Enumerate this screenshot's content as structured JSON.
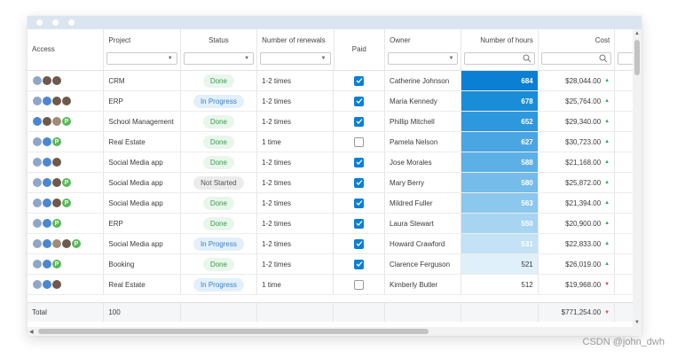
{
  "columns": {
    "access": "Access",
    "project": "Project",
    "status": "Status",
    "renewals": "Number of renewals",
    "paid": "Paid",
    "owner": "Owner",
    "hours": "Number of hours",
    "cost": "Cost"
  },
  "rows": [
    {
      "project": "CRM",
      "status": "Done",
      "status_type": "done",
      "renewals": "1-2 times",
      "paid": true,
      "owner": "Catherine Johnson",
      "hours": "684",
      "cost": "$28,044.00",
      "trend": "up",
      "avatars": [
        "g1",
        "g3",
        "g3"
      ]
    },
    {
      "project": "ERP",
      "status": "In Progress",
      "status_type": "prog",
      "renewals": "1-2 times",
      "paid": true,
      "owner": "Maria Kennedy",
      "hours": "678",
      "cost": "$25,764.00",
      "trend": "up",
      "avatars": [
        "g1",
        "g2",
        "g3",
        "g3"
      ]
    },
    {
      "project": "School Management",
      "status": "Done",
      "status_type": "done",
      "renewals": "1-2 times",
      "paid": true,
      "owner": "Phillip Mitchell",
      "hours": "652",
      "cost": "$29,340.00",
      "trend": "up",
      "avatars": [
        "g2",
        "g3",
        "g4",
        "P"
      ]
    },
    {
      "project": "Real Estate",
      "status": "Done",
      "status_type": "done",
      "renewals": "1 time",
      "paid": false,
      "owner": "Pamela Nelson",
      "hours": "627",
      "cost": "$30,723.00",
      "trend": "up",
      "avatars": [
        "g1",
        "g2",
        "P"
      ]
    },
    {
      "project": "Social Media app",
      "status": "Done",
      "status_type": "done",
      "renewals": "1-2 times",
      "paid": true,
      "owner": "Jose Morales",
      "hours": "588",
      "cost": "$21,168.00",
      "trend": "up",
      "avatars": [
        "g1",
        "g2",
        "g3"
      ]
    },
    {
      "project": "Social Media app",
      "status": "Not Started",
      "status_type": "ns",
      "renewals": "1-2 times",
      "paid": true,
      "owner": "Mary Berry",
      "hours": "580",
      "cost": "$25,872.00",
      "trend": "up",
      "avatars": [
        "g1",
        "g2",
        "g3",
        "P"
      ]
    },
    {
      "project": "Social Media app",
      "status": "Done",
      "status_type": "done",
      "renewals": "1-2 times",
      "paid": true,
      "owner": "Mildred Fuller",
      "hours": "563",
      "cost": "$21,394.00",
      "trend": "up",
      "avatars": [
        "g1",
        "g2",
        "g3",
        "P"
      ]
    },
    {
      "project": "ERP",
      "status": "Done",
      "status_type": "done",
      "renewals": "1-2 times",
      "paid": true,
      "owner": "Laura Stewart",
      "hours": "550",
      "cost": "$20,900.00",
      "trend": "up",
      "avatars": [
        "g1",
        "g2",
        "P"
      ]
    },
    {
      "project": "Social Media app",
      "status": "In Progress",
      "status_type": "prog",
      "renewals": "1-2 times",
      "paid": true,
      "owner": "Howard Crawford",
      "hours": "531",
      "cost": "$22,833.00",
      "trend": "up",
      "avatars": [
        "g1",
        "g2",
        "g4",
        "g3",
        "P"
      ]
    },
    {
      "project": "Booking",
      "status": "Done",
      "status_type": "done",
      "renewals": "1-2 times",
      "paid": true,
      "owner": "Clarence Ferguson",
      "hours": "521",
      "cost": "$26,019.00",
      "trend": "up",
      "avatars": [
        "g1",
        "g2",
        "P"
      ]
    },
    {
      "project": "Real Estate",
      "status": "In Progress",
      "status_type": "prog",
      "renewals": "1 time",
      "paid": false,
      "owner": "Kimberly Butler",
      "hours": "512",
      "cost": "$19,968.00",
      "trend": "down",
      "avatars": [
        "g1",
        "g2",
        "g3"
      ]
    }
  ],
  "hours_colors": [
    "#0a7fd4",
    "#1a8dd9",
    "#2e98de",
    "#4aa6e2",
    "#5db0e6",
    "#75bcea",
    "#8cc7ed",
    "#a7d4f1",
    "#c3e2f5",
    "#e0f0fa",
    "#ffffff"
  ],
  "footer": {
    "label": "Total",
    "count": "100",
    "cost_total": "$771,254.00"
  },
  "colors": {
    "accent": "#0a7fd4",
    "up": "#2eaa63",
    "down": "#e04646"
  },
  "watermark": "CSDN @john_dwh"
}
